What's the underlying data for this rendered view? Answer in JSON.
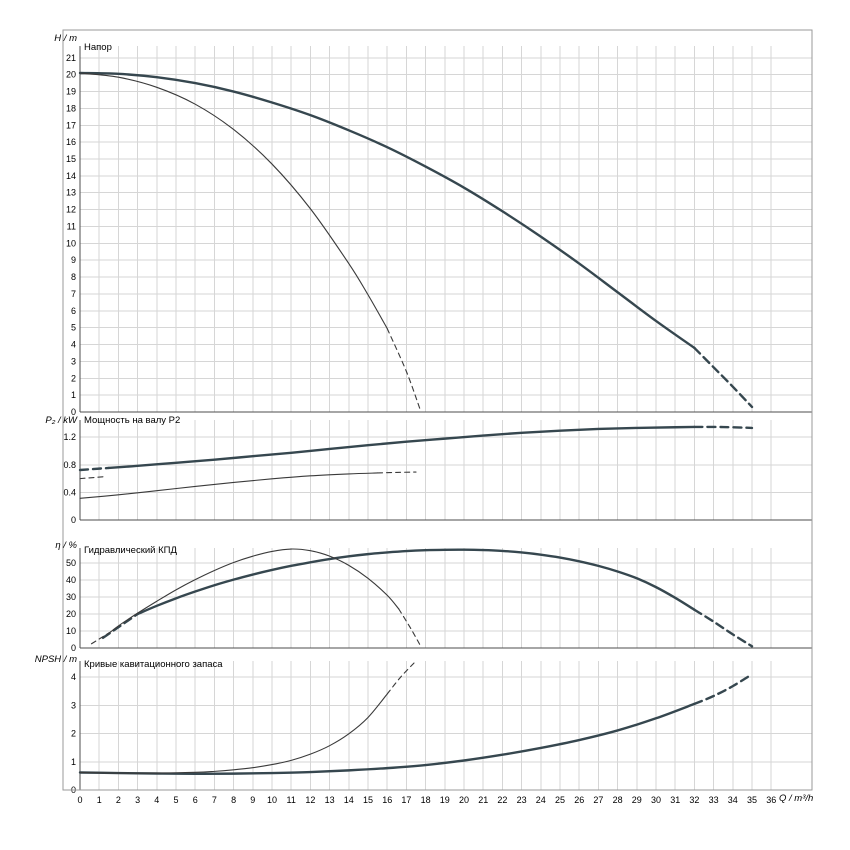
{
  "colors": {
    "background": "#ffffff",
    "grid": "#d6d6d6",
    "axis": "#4d4d4d",
    "frame": "#9a9a9a",
    "curve_thick": "#36474f",
    "curve_thin": "#3a3a3a",
    "text": "#000000"
  },
  "x_axis": {
    "label": "Q / m³/h",
    "min": 0,
    "max": 36,
    "tick_step": 1,
    "tick_labels": [
      "0",
      "1",
      "2",
      "3",
      "4",
      "5",
      "6",
      "7",
      "8",
      "9",
      "10",
      "11",
      "12",
      "13",
      "14",
      "15",
      "16",
      "17",
      "18",
      "19",
      "20",
      "21",
      "22",
      "23",
      "24",
      "25",
      "26",
      "27",
      "28",
      "29",
      "30",
      "31",
      "32",
      "33",
      "34",
      "35",
      "36"
    ]
  },
  "chart_data": [
    {
      "id": "head",
      "type": "line",
      "title": "Напор",
      "ylabel": "H / m",
      "xlim": [
        0,
        36
      ],
      "ylim": [
        0,
        21.7
      ],
      "grid": true,
      "yticks": [
        0,
        1,
        2,
        3,
        4,
        5,
        6,
        7,
        8,
        9,
        10,
        11,
        12,
        13,
        14,
        15,
        16,
        17,
        18,
        19,
        20,
        21
      ],
      "series": [
        {
          "name": "head-high-speed",
          "weight": "thick",
          "segments": [
            {
              "style": "solid",
              "points": [
                [
                  0,
                  20.1
                ],
                [
                  2,
                  20.05
                ],
                [
                  4,
                  19.85
                ],
                [
                  6,
                  19.5
                ],
                [
                  8,
                  19.0
                ],
                [
                  10,
                  18.35
                ],
                [
                  12,
                  17.6
                ],
                [
                  14,
                  16.7
                ],
                [
                  16,
                  15.7
                ],
                [
                  18,
                  14.55
                ],
                [
                  20,
                  13.3
                ],
                [
                  22,
                  11.9
                ],
                [
                  24,
                  10.4
                ],
                [
                  26,
                  8.8
                ],
                [
                  28,
                  7.1
                ],
                [
                  30,
                  5.4
                ],
                [
                  32,
                  3.8
                ]
              ]
            },
            {
              "style": "dashed",
              "points": [
                [
                  32,
                  3.8
                ],
                [
                  33,
                  2.65
                ],
                [
                  34,
                  1.5
                ],
                [
                  35,
                  0.3
                ]
              ]
            }
          ]
        },
        {
          "name": "head-low-speed",
          "weight": "thin",
          "segments": [
            {
              "style": "solid",
              "points": [
                [
                  0,
                  20.1
                ],
                [
                  2,
                  19.85
                ],
                [
                  4,
                  19.25
                ],
                [
                  6,
                  18.25
                ],
                [
                  8,
                  16.75
                ],
                [
                  10,
                  14.7
                ],
                [
                  12,
                  12.05
                ],
                [
                  14,
                  8.8
                ],
                [
                  15,
                  6.95
                ],
                [
                  16,
                  4.95
                ]
              ]
            },
            {
              "style": "dashed",
              "points": [
                [
                  16,
                  4.95
                ],
                [
                  17,
                  2.4
                ],
                [
                  17.7,
                  0.2
                ]
              ]
            }
          ]
        }
      ]
    },
    {
      "id": "power",
      "type": "line",
      "title": "Мощность на валу P2",
      "ylabel": "P₂ / kW",
      "xlim": [
        0,
        36
      ],
      "ylim": [
        0,
        1.45
      ],
      "grid": true,
      "yticks": [
        0,
        0.4,
        0.8,
        1.2
      ],
      "series": [
        {
          "name": "power-high-speed",
          "weight": "thick",
          "segments": [
            {
              "style": "dashed",
              "points": [
                [
                  0,
                  0.725
                ],
                [
                  1.5,
                  0.755
                ]
              ]
            },
            {
              "style": "solid",
              "points": [
                [
                  1.5,
                  0.755
                ],
                [
                  3,
                  0.785
                ],
                [
                  5,
                  0.83
                ],
                [
                  7,
                  0.875
                ],
                [
                  9,
                  0.925
                ],
                [
                  11,
                  0.975
                ],
                [
                  13,
                  1.03
                ],
                [
                  15,
                  1.085
                ],
                [
                  17,
                  1.135
                ],
                [
                  19,
                  1.18
                ],
                [
                  21,
                  1.225
                ],
                [
                  23,
                  1.265
                ],
                [
                  25,
                  1.295
                ],
                [
                  27,
                  1.32
                ],
                [
                  29,
                  1.335
                ],
                [
                  31,
                  1.345
                ],
                [
                  32,
                  1.35
                ]
              ]
            },
            {
              "style": "dashed",
              "points": [
                [
                  32,
                  1.35
                ],
                [
                  33.5,
                  1.348
                ],
                [
                  35,
                  1.335
                ]
              ]
            }
          ]
        },
        {
          "name": "power-low-speed",
          "weight": "thin",
          "segments": [
            {
              "style": "dashed",
              "points": [
                [
                  0,
                  0.6
                ],
                [
                  1.3,
                  0.628
                ]
              ]
            },
            {
              "style": "solid",
              "points": [
                [
                  0,
                  0.315
                ],
                [
                  2,
                  0.365
                ],
                [
                  4,
                  0.425
                ],
                [
                  6,
                  0.487
                ],
                [
                  8,
                  0.545
                ],
                [
                  10,
                  0.597
                ],
                [
                  12,
                  0.64
                ],
                [
                  14,
                  0.668
                ],
                [
                  15.5,
                  0.682
                ]
              ]
            },
            {
              "style": "dashed",
              "points": [
                [
                  15.5,
                  0.682
                ],
                [
                  16.5,
                  0.69
                ],
                [
                  17.5,
                  0.695
                ]
              ]
            }
          ]
        }
      ]
    },
    {
      "id": "efficiency",
      "type": "line",
      "title": "Гидравлический КПД",
      "ylabel": "η / %",
      "xlim": [
        0,
        36
      ],
      "ylim": [
        0,
        58.8
      ],
      "grid": true,
      "yticks": [
        0,
        10,
        20,
        30,
        40,
        50
      ],
      "series": [
        {
          "name": "efficiency-high-speed",
          "weight": "thick",
          "segments": [
            {
              "style": "dashed",
              "points": [
                [
                  1.2,
                  6
                ],
                [
                  3,
                  20
                ]
              ]
            },
            {
              "style": "solid",
              "points": [
                [
                  3,
                  20
                ],
                [
                  4,
                  24.8
                ],
                [
                  5,
                  29.2
                ],
                [
                  6,
                  33.2
                ],
                [
                  7,
                  36.9
                ],
                [
                  8,
                  40.2
                ],
                [
                  9,
                  43.2
                ],
                [
                  10,
                  45.9
                ],
                [
                  11,
                  48.3
                ],
                [
                  12,
                  50.4
                ],
                [
                  13,
                  52.3
                ],
                [
                  14,
                  53.9
                ],
                [
                  15,
                  55.2
                ],
                [
                  16,
                  56.2
                ],
                [
                  17,
                  57.0
                ],
                [
                  18,
                  57.5
                ],
                [
                  19,
                  57.75
                ],
                [
                  20,
                  57.8
                ],
                [
                  21,
                  57.6
                ],
                [
                  22,
                  57.1
                ],
                [
                  23,
                  56.2
                ],
                [
                  24,
                  54.9
                ],
                [
                  25,
                  53.2
                ],
                [
                  26,
                  51.0
                ],
                [
                  27,
                  48.3
                ],
                [
                  28,
                  45.0
                ],
                [
                  29,
                  41.0
                ],
                [
                  30,
                  35.8
                ],
                [
                  31,
                  29.5
                ],
                [
                  32,
                  22.5
                ]
              ]
            },
            {
              "style": "dashed",
              "points": [
                [
                  32,
                  22.5
                ],
                [
                  33,
                  15.5
                ],
                [
                  34,
                  8.0
                ],
                [
                  35,
                  1.0
                ]
              ]
            }
          ]
        },
        {
          "name": "efficiency-low-speed",
          "weight": "thin",
          "segments": [
            {
              "style": "dashed",
              "points": [
                [
                  0.6,
                  2.5
                ],
                [
                  1.6,
                  9.5
                ]
              ]
            },
            {
              "style": "solid",
              "points": [
                [
                  1.6,
                  9.5
                ],
                [
                  2,
                  13
                ],
                [
                  3,
                  20.5
                ],
                [
                  4,
                  27.5
                ],
                [
                  5,
                  34.2
                ],
                [
                  6,
                  40.2
                ],
                [
                  7,
                  45.6
                ],
                [
                  8,
                  50.3
                ],
                [
                  9,
                  54.0
                ],
                [
                  10,
                  56.8
                ],
                [
                  11,
                  58.2
                ],
                [
                  12,
                  57.2
                ],
                [
                  13,
                  54.0
                ],
                [
                  14,
                  48.6
                ],
                [
                  15,
                  41.0
                ],
                [
                  16,
                  31.0
                ],
                [
                  16.6,
                  23.0
                ]
              ]
            },
            {
              "style": "dashed",
              "points": [
                [
                  16.6,
                  23.0
                ],
                [
                  17.2,
                  12.0
                ],
                [
                  17.7,
                  2.0
                ]
              ]
            }
          ]
        }
      ]
    },
    {
      "id": "npsh",
      "type": "line",
      "title": "Кривые кавитационного запаса",
      "ylabel": "NPSH / m",
      "xlim": [
        0,
        36
      ],
      "ylim": [
        0,
        4.57
      ],
      "grid": true,
      "yticks": [
        0,
        1,
        2,
        3,
        4
      ],
      "series": [
        {
          "name": "npsh-high-speed",
          "weight": "thick",
          "segments": [
            {
              "style": "solid",
              "points": [
                [
                  0,
                  0.62
                ],
                [
                  2,
                  0.6
                ],
                [
                  4,
                  0.585
                ],
                [
                  6,
                  0.575
                ],
                [
                  8,
                  0.58
                ],
                [
                  10,
                  0.6
                ],
                [
                  12,
                  0.635
                ],
                [
                  14,
                  0.695
                ],
                [
                  16,
                  0.775
                ],
                [
                  18,
                  0.885
                ],
                [
                  20,
                  1.045
                ],
                [
                  22,
                  1.25
                ],
                [
                  24,
                  1.49
                ],
                [
                  26,
                  1.77
                ],
                [
                  28,
                  2.11
                ],
                [
                  30,
                  2.54
                ],
                [
                  32,
                  3.05
                ]
              ]
            },
            {
              "style": "dashed",
              "points": [
                [
                  32,
                  3.05
                ],
                [
                  33,
                  3.33
                ],
                [
                  34,
                  3.68
                ],
                [
                  35,
                  4.1
                ]
              ]
            }
          ]
        },
        {
          "name": "npsh-low-speed",
          "weight": "thin",
          "segments": [
            {
              "style": "solid",
              "points": [
                [
                  0,
                  0.62
                ],
                [
                  2,
                  0.6
                ],
                [
                  4,
                  0.6
                ],
                [
                  6,
                  0.625
                ],
                [
                  7,
                  0.66
                ],
                [
                  8,
                  0.715
                ],
                [
                  9,
                  0.79
                ],
                [
                  10,
                  0.9
                ],
                [
                  11,
                  1.05
                ],
                [
                  12,
                  1.27
                ],
                [
                  13,
                  1.57
                ],
                [
                  14,
                  1.99
                ],
                [
                  15,
                  2.57
                ],
                [
                  16,
                  3.4
                ]
              ]
            },
            {
              "style": "dashed",
              "points": [
                [
                  16,
                  3.4
                ],
                [
                  16.7,
                  4.0
                ],
                [
                  17.4,
                  4.5
                ]
              ]
            }
          ]
        }
      ]
    }
  ]
}
